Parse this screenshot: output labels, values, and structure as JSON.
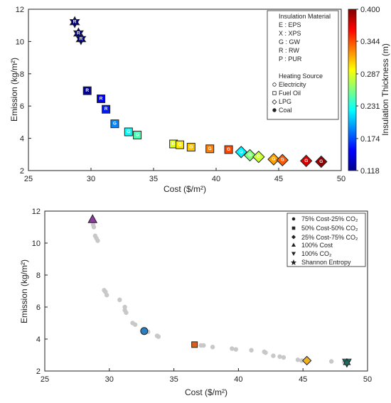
{
  "chart_data": [
    {
      "type": "scatter",
      "xlabel": "Cost ($/m²)",
      "ylabel": "Emission (kg/m²)",
      "xlim": [
        25,
        50
      ],
      "ylim": [
        2,
        12
      ],
      "xticks": [
        "25",
        "30",
        "35",
        "40",
        "45",
        "50"
      ],
      "yticks": [
        "2",
        "4",
        "6",
        "8",
        "10",
        "12"
      ],
      "legend": {
        "placement": "top-right",
        "material_title": "Insulation Material",
        "materials": [
          "E : EPS",
          "X : XPS",
          "G : GW",
          "R : RW",
          "P : PUR"
        ],
        "source_title": "Heating Source",
        "sources": [
          {
            "marker": "circle",
            "label": "Electricity"
          },
          {
            "marker": "square",
            "label": "Fuel Oil"
          },
          {
            "marker": "diamond",
            "label": "LPG"
          },
          {
            "marker": "hexagram",
            "label": "Coal"
          }
        ]
      },
      "colorbar": {
        "label": "Insulation Thickness (m)",
        "ticks": [
          "0.400",
          "0.344",
          "0.287",
          "0.231",
          "0.174",
          "0.118"
        ],
        "range": [
          0.118,
          0.4
        ],
        "colormap": "jet"
      },
      "points": [
        {
          "x": 28.7,
          "y": 11.2,
          "t": 0.118,
          "m": "R",
          "shape": "hexagram"
        },
        {
          "x": 29.0,
          "y": 10.5,
          "t": 0.118,
          "m": "R",
          "shape": "hexagram"
        },
        {
          "x": 29.2,
          "y": 10.15,
          "t": 0.118,
          "m": "R",
          "shape": "hexagram"
        },
        {
          "x": 29.7,
          "y": 6.95,
          "t": 0.125,
          "m": "R",
          "shape": "square"
        },
        {
          "x": 30.8,
          "y": 6.45,
          "t": 0.15,
          "m": "R",
          "shape": "square"
        },
        {
          "x": 31.2,
          "y": 5.8,
          "t": 0.16,
          "m": "R",
          "shape": "square"
        },
        {
          "x": 31.9,
          "y": 4.9,
          "t": 0.19,
          "m": "G",
          "shape": "square"
        },
        {
          "x": 33.0,
          "y": 4.4,
          "t": 0.225,
          "m": "G",
          "shape": "square"
        },
        {
          "x": 33.7,
          "y": 4.2,
          "t": 0.245,
          "m": "G",
          "shape": "square"
        },
        {
          "x": 36.6,
          "y": 3.65,
          "t": 0.285,
          "m": "G",
          "shape": "square"
        },
        {
          "x": 37.1,
          "y": 3.6,
          "t": 0.3,
          "m": "G",
          "shape": "square"
        },
        {
          "x": 38.0,
          "y": 3.45,
          "t": 0.31,
          "m": "G",
          "shape": "square"
        },
        {
          "x": 39.5,
          "y": 3.35,
          "t": 0.33,
          "m": "G",
          "shape": "square"
        },
        {
          "x": 41.0,
          "y": 3.3,
          "t": 0.345,
          "m": "G",
          "shape": "square"
        },
        {
          "x": 42.0,
          "y": 3.15,
          "t": 0.22,
          "m": "G",
          "shape": "diamond"
        },
        {
          "x": 42.7,
          "y": 2.95,
          "t": 0.26,
          "m": "G",
          "shape": "diamond"
        },
        {
          "x": 43.4,
          "y": 2.85,
          "t": 0.28,
          "m": "G",
          "shape": "diamond"
        },
        {
          "x": 44.6,
          "y": 2.7,
          "t": 0.32,
          "m": "G",
          "shape": "diamond"
        },
        {
          "x": 45.3,
          "y": 2.65,
          "t": 0.34,
          "m": "G",
          "shape": "diamond"
        },
        {
          "x": 47.2,
          "y": 2.6,
          "t": 0.375,
          "m": "G",
          "shape": "diamond"
        },
        {
          "x": 48.4,
          "y": 2.55,
          "t": 0.395,
          "m": "G",
          "shape": "diamond"
        }
      ]
    },
    {
      "type": "scatter",
      "xlabel": "Cost ($/m²)",
      "ylabel": "Emission (kg/m²)",
      "xlim": [
        25,
        50
      ],
      "ylim": [
        2,
        12
      ],
      "xticks": [
        "25",
        "30",
        "35",
        "40",
        "45",
        "50"
      ],
      "yticks": [
        "2",
        "4",
        "6",
        "8",
        "10",
        "12"
      ],
      "legend": {
        "placement": "top-right",
        "entries": [
          {
            "marker": "circle",
            "label": "75% Cost-25% CO₂"
          },
          {
            "marker": "square",
            "label": "50% Cost-50% CO₂"
          },
          {
            "marker": "diamond",
            "label": "25% Cost-75% CO₂"
          },
          {
            "marker": "triangle-up",
            "label": "100% Cost"
          },
          {
            "marker": "triangle-down",
            "label": "100% CO₂"
          },
          {
            "marker": "hexagram",
            "label": "Shannon Entropy"
          }
        ]
      },
      "pareto_color": "#c8c8c8",
      "pareto": [
        [
          28.7,
          11.35
        ],
        [
          28.75,
          11.15
        ],
        [
          28.8,
          11.0
        ],
        [
          28.9,
          10.45
        ],
        [
          29.0,
          10.3
        ],
        [
          29.1,
          10.15
        ],
        [
          29.6,
          7.05
        ],
        [
          29.7,
          6.95
        ],
        [
          29.8,
          6.75
        ],
        [
          30.8,
          6.45
        ],
        [
          31.2,
          6.0
        ],
        [
          31.2,
          5.8
        ],
        [
          31.3,
          5.65
        ],
        [
          31.8,
          5.0
        ],
        [
          32.0,
          4.9
        ],
        [
          33.0,
          4.45
        ],
        [
          33.7,
          4.2
        ],
        [
          33.8,
          4.15
        ],
        [
          36.6,
          3.7
        ],
        [
          37.1,
          3.6
        ],
        [
          37.3,
          3.6
        ],
        [
          38.0,
          3.5
        ],
        [
          39.5,
          3.4
        ],
        [
          39.8,
          3.35
        ],
        [
          41.0,
          3.3
        ],
        [
          42.0,
          3.2
        ],
        [
          42.1,
          3.15
        ],
        [
          42.7,
          2.95
        ],
        [
          43.2,
          2.9
        ],
        [
          43.5,
          2.85
        ],
        [
          44.6,
          2.7
        ],
        [
          44.9,
          2.65
        ],
        [
          47.2,
          2.6
        ],
        [
          48.2,
          2.55
        ],
        [
          48.4,
          2.5
        ]
      ],
      "highlights": [
        {
          "shape": "triangle-up",
          "x": 28.7,
          "y": 11.5,
          "color": "#8c3c9c",
          "label": "100% Cost"
        },
        {
          "shape": "circle",
          "x": 32.7,
          "y": 4.5,
          "color": "#2a7fc0",
          "label": "75% Cost-25% CO₂"
        },
        {
          "shape": "square",
          "x": 36.6,
          "y": 3.65,
          "color": "#d9601a",
          "label": "50% Cost-50% CO₂"
        },
        {
          "shape": "diamond",
          "x": 45.3,
          "y": 2.65,
          "color": "#f2b020",
          "label": "25% Cost-75% CO₂"
        },
        {
          "shape": "triangle-down",
          "x": 48.4,
          "y": 2.52,
          "color": "#3aa39a",
          "label": "100% CO₂"
        },
        {
          "shape": "hexagram",
          "x": 48.4,
          "y": 2.52,
          "color": "#1e6b63",
          "label": "Shannon Entropy"
        }
      ]
    }
  ]
}
